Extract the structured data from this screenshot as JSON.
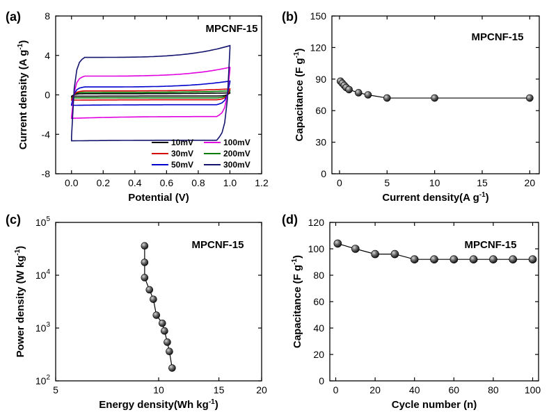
{
  "chart_data": [
    {
      "panel": "(a)",
      "type": "line",
      "annotation": "MPCNF-15",
      "xlabel": "Potential (V)",
      "ylabel": "Current density (A g⁻¹)",
      "ylabel_base": "Current density (A g",
      "ylabel_sup": "-1",
      "ylabel_close": ")",
      "xlim": [
        -0.1,
        1.2
      ],
      "ylim": [
        -8,
        8
      ],
      "xticks": [
        0.0,
        0.2,
        0.4,
        0.6,
        0.8,
        1.0,
        1.2
      ],
      "xticklabels": [
        "0.0",
        "0.2",
        "0.4",
        "0.6",
        "0.8",
        "1.0",
        "1.2"
      ],
      "yticks": [
        -8,
        -4,
        0,
        4,
        8
      ],
      "yticklabels": [
        "-8",
        "-4",
        "0",
        "4",
        "8"
      ],
      "legend_position": "bottom-right",
      "series": [
        {
          "name": "10mV",
          "color": "#000000",
          "upper": 0.12,
          "lower": -0.12,
          "upper_end": 0.2,
          "lower_start": -0.15
        },
        {
          "name": "30mV",
          "color": "#d40000",
          "upper": 0.4,
          "lower": -0.5,
          "upper_end": 0.6,
          "lower_start": -0.55
        },
        {
          "name": "50mV",
          "color": "#0000cc",
          "upper": 0.8,
          "lower": -1.0,
          "upper_end": 1.4,
          "lower_start": -1.1
        },
        {
          "name": "100mV",
          "color": "#e000e0",
          "upper": 1.9,
          "lower": -2.2,
          "upper_end": 2.8,
          "lower_start": -2.5
        },
        {
          "name": "200mV",
          "color": "#007a00",
          "upper": 0.25,
          "lower": -0.3,
          "upper_end": 0.4,
          "lower_start": -0.3
        },
        {
          "name": "300mV",
          "color": "#14146e",
          "upper": 3.8,
          "lower": -4.6,
          "upper_end": 5.0,
          "lower_start": -4.7
        }
      ]
    },
    {
      "panel": "(b)",
      "type": "scatter",
      "annotation": "MPCNF-15",
      "xlabel": "Current density(A g⁻¹)",
      "xlabel_base": "Current density(A g",
      "xlabel_sup": "-1",
      "xlabel_close": ")",
      "ylabel": "Capacitance (F g⁻¹)",
      "ylabel_base": "Capacitance (F g",
      "ylabel_sup": "-1",
      "ylabel_close": ")",
      "xlim": [
        -0.8,
        21
      ],
      "ylim": [
        0,
        150
      ],
      "xticks": [
        0,
        5,
        10,
        15,
        20
      ],
      "xticklabels": [
        "0",
        "5",
        "10",
        "15",
        "20"
      ],
      "yticks": [
        0,
        30,
        60,
        90,
        120,
        150
      ],
      "yticklabels": [
        "0",
        "30",
        "60",
        "90",
        "120",
        "150"
      ],
      "x": [
        0.1,
        0.3,
        0.5,
        0.7,
        1.0,
        2.0,
        3.0,
        5.0,
        10.0,
        20.0
      ],
      "y": [
        88,
        86,
        84,
        82,
        80,
        77,
        75,
        72,
        72,
        72
      ]
    },
    {
      "panel": "(c)",
      "type": "line",
      "annotation": "MPCNF-15",
      "xlabel": "Energy density(Wh kg⁻¹)",
      "xlabel_base": "Energy density(Wh kg",
      "xlabel_sup": "-1",
      "xlabel_close": ")",
      "ylabel": "Power density (W kg⁻¹)",
      "ylabel_base": "Power density (W kg",
      "ylabel_sup": "-1",
      "ylabel_close": ")",
      "xscale": "log",
      "yscale": "log",
      "xlim": [
        5,
        20
      ],
      "ylim": [
        100,
        100000
      ],
      "xticks": [
        5,
        10,
        15,
        20
      ],
      "xticklabels": [
        "5",
        "10",
        "15",
        "20"
      ],
      "yticks": [
        100,
        1000,
        10000,
        100000
      ],
      "yticklabels": [
        {
          "base": "10",
          "exp": "2"
        },
        {
          "base": "10",
          "exp": "3"
        },
        {
          "base": "10",
          "exp": "4"
        },
        {
          "base": "10",
          "exp": "5"
        }
      ],
      "x": [
        9.1,
        9.1,
        9.1,
        9.4,
        9.65,
        9.85,
        10.25,
        10.4,
        10.6,
        10.75,
        10.95
      ],
      "y": [
        36000,
        17500,
        9000,
        5300,
        3500,
        1750,
        1230,
        880,
        540,
        360,
        175
      ]
    },
    {
      "panel": "(d)",
      "type": "scatter",
      "annotation": "MPCNF-15",
      "xlabel": "Cycle number (n)",
      "ylabel": "Capacitance (F g⁻¹)",
      "ylabel_base": "Capacitance (F g",
      "ylabel_sup": "-1",
      "ylabel_close": ")",
      "xlim": [
        -3,
        103
      ],
      "ylim": [
        0,
        120
      ],
      "xticks": [
        0,
        20,
        40,
        60,
        80,
        100
      ],
      "xticklabels": [
        "0",
        "20",
        "40",
        "60",
        "80",
        "100"
      ],
      "yticks": [
        0,
        20,
        40,
        60,
        80,
        100,
        120
      ],
      "yticklabels": [
        "0",
        "20",
        "40",
        "60",
        "80",
        "100",
        "120"
      ],
      "x": [
        1,
        10,
        20,
        30,
        40,
        50,
        60,
        70,
        80,
        90,
        100
      ],
      "y": [
        104,
        100,
        96,
        96,
        92,
        92,
        92,
        92,
        92,
        92,
        92
      ]
    }
  ]
}
